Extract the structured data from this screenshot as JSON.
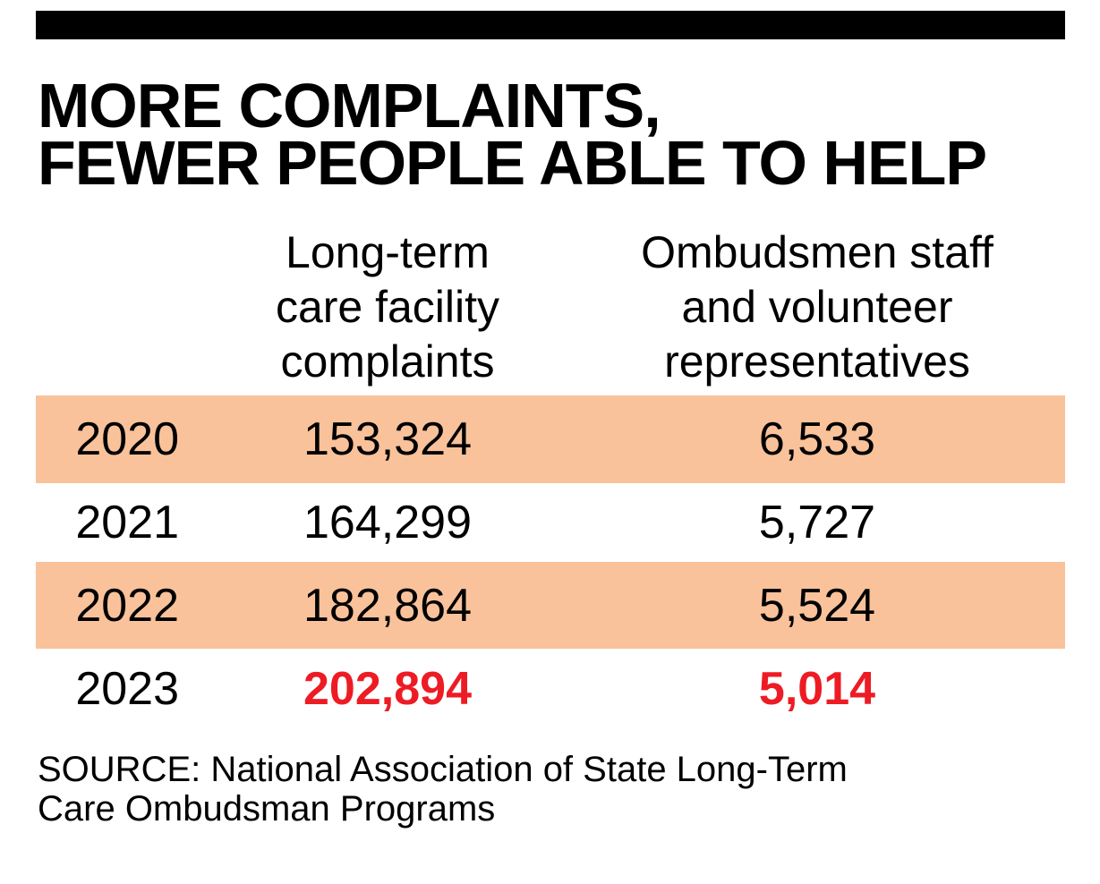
{
  "title_lines": [
    "MORE COMPLAINTS,",
    "FEWER PEOPLE ABLE TO HELP"
  ],
  "colors": {
    "band": "#F9C29A",
    "highlight": "#ED1C24",
    "topbar": "#000000"
  },
  "chart_data": {
    "type": "table",
    "columns": [
      "",
      "Long-term care facility complaints",
      "Ombudsmen staff and volunteer representatives"
    ],
    "header_lines": {
      "complaints": [
        "Long-term",
        "care facility",
        "complaints"
      ],
      "staff": [
        "Ombudsmen staff",
        "and volunteer",
        "representatives"
      ]
    },
    "rows": [
      {
        "year": "2020",
        "complaints": "153,324",
        "staff": "6,533",
        "shaded": true,
        "highlight": false
      },
      {
        "year": "2021",
        "complaints": "164,299",
        "staff": "5,727",
        "shaded": false,
        "highlight": false
      },
      {
        "year": "2022",
        "complaints": "182,864",
        "staff": "5,524",
        "shaded": true,
        "highlight": false
      },
      {
        "year": "2023",
        "complaints": "202,894",
        "staff": "5,014",
        "shaded": false,
        "highlight": true
      }
    ]
  },
  "source_lines": [
    "SOURCE: National Association of State Long-Term",
    "Care Ombudsman Programs"
  ]
}
